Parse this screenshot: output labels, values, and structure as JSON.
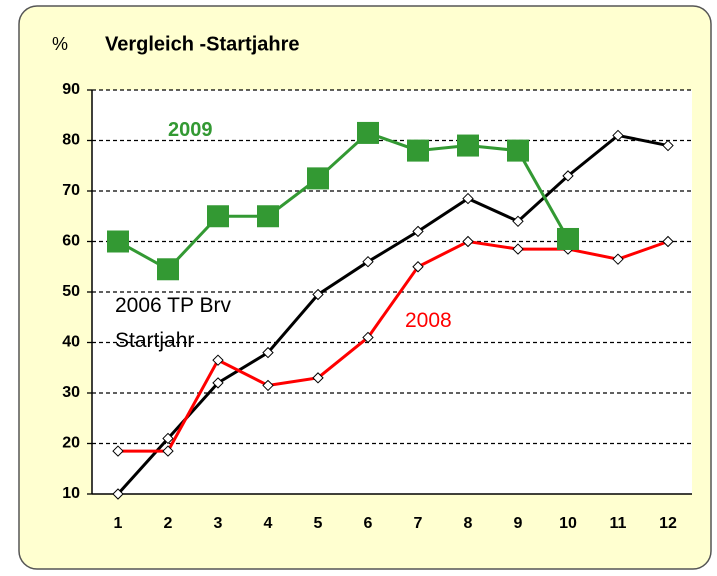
{
  "chart_data": {
    "type": "line",
    "title": "Vergleich -Startjahre",
    "y_label": "%",
    "categories": [
      "1",
      "2",
      "3",
      "4",
      "5",
      "6",
      "7",
      "8",
      "9",
      "10",
      "11",
      "12"
    ],
    "ylim": [
      10,
      90
    ],
    "yticks": [
      10,
      20,
      30,
      40,
      50,
      60,
      70,
      80,
      90
    ],
    "grid": true,
    "series": [
      {
        "name": "2006 TP Brv Startjahr",
        "color": "#000000",
        "values": [
          10,
          21,
          32,
          38,
          49.5,
          56,
          62,
          68.5,
          64,
          73,
          81,
          79
        ]
      },
      {
        "name": "2008",
        "color": "#ff0000",
        "values": [
          18.5,
          18.5,
          36.5,
          31.5,
          33,
          41,
          55,
          60,
          58.5,
          58.5,
          56.5,
          60
        ]
      },
      {
        "name": "2009",
        "color": "#339933",
        "values": [
          60,
          54.5,
          65,
          65,
          72.5,
          81.5,
          78,
          79,
          78,
          60.5,
          null,
          null
        ]
      }
    ]
  }
}
